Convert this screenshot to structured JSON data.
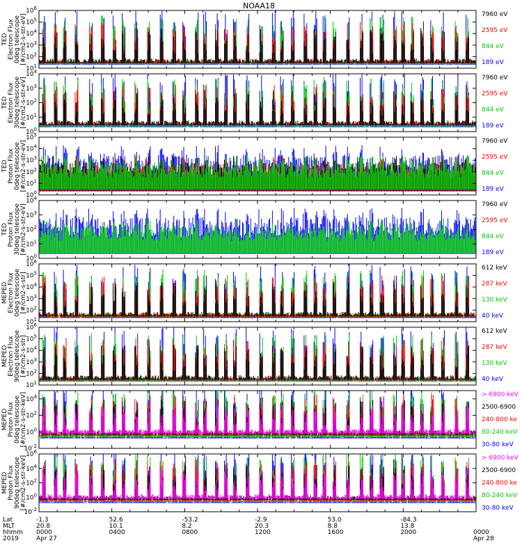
{
  "chart_data": {
    "type": "line",
    "title": "NOAA18",
    "x_range": [
      "2019-04-27 00:00",
      "2019-04-28 00:00"
    ],
    "panels": [
      {
        "ylabel": [
          "TED",
          "Electron Flux",
          "0deg telescope",
          "[#/cm2-s-str-eV]"
        ],
        "y_ticks": [
          "10^1",
          "10^2",
          "10^3",
          "10^4",
          "10^5",
          "10^6"
        ],
        "y_exp": [
          1,
          6
        ],
        "legend": [
          {
            "label": "7960 eV",
            "color": "#000000"
          },
          {
            "label": "2595 eV",
            "color": "#ff0000"
          },
          {
            "label": "844 eV",
            "color": "#00cc00"
          },
          {
            "label": "189 eV",
            "color": "#0000ff"
          }
        ],
        "series_order": [
          "#0000ff",
          "#00cc00",
          "#ff0000",
          "#000000"
        ]
      },
      {
        "ylabel": [
          "TED",
          "Electron Flux",
          "30deg telescope",
          "[#/cm2-s-str-eV]"
        ],
        "y_ticks": [
          "10^0",
          "10^1",
          "10^2",
          "10^3",
          "10^4"
        ],
        "y_exp": [
          0,
          4
        ],
        "legend": [
          {
            "label": "7960 eV",
            "color": "#000000"
          },
          {
            "label": "2595 eV",
            "color": "#ff0000"
          },
          {
            "label": "844 eV",
            "color": "#00cc00"
          },
          {
            "label": "189 eV",
            "color": "#0000ff"
          }
        ],
        "series_order": [
          "#0000ff",
          "#00cc00",
          "#ff0000",
          "#000000"
        ]
      },
      {
        "ylabel": [
          "TED",
          "Proton Flux",
          "0deg telescope",
          "[#/cm2-s-str-eV]"
        ],
        "y_ticks": [
          "10^0",
          "10^1",
          "10^2",
          "10^3",
          "10^4",
          "10^5"
        ],
        "y_exp": [
          0,
          5
        ],
        "legend": [
          {
            "label": "7960 eV",
            "color": "#000000"
          },
          {
            "label": "2595 eV",
            "color": "#ff0000"
          },
          {
            "label": "844 eV",
            "color": "#00cc00"
          },
          {
            "label": "189 eV",
            "color": "#0000ff"
          }
        ],
        "series_order": [
          "#0000ff",
          "#ff0000",
          "#000000",
          "#00cc00"
        ]
      },
      {
        "ylabel": [
          "TED",
          "Proton Flux",
          "30deg telescope",
          "[#/cm2-s-str-eV]"
        ],
        "y_ticks": [
          "10^0",
          "10^1",
          "10^2",
          "10^3",
          "10^4"
        ],
        "y_exp": [
          0,
          4
        ],
        "legend": [
          {
            "label": "7960 eV",
            "color": "#000000"
          },
          {
            "label": "2595 eV",
            "color": "#ff0000"
          },
          {
            "label": "844 eV",
            "color": "#00cc00"
          },
          {
            "label": "189 eV",
            "color": "#0000ff"
          }
        ],
        "series_order": [
          "#0000ff",
          "#00cc00"
        ]
      },
      {
        "ylabel": [
          "MEPED",
          "Electron Flux",
          "0deg telescope",
          "[#/cm2-s-str]"
        ],
        "y_ticks": [
          "10^1",
          "10^2",
          "10^3",
          "10^4",
          "10^5",
          "10^6"
        ],
        "y_exp": [
          1,
          6
        ],
        "legend": [
          {
            "label": "612 keV",
            "color": "#000000"
          },
          {
            "label": "287 keV",
            "color": "#ff0000"
          },
          {
            "label": "130 keV",
            "color": "#00cc00"
          },
          {
            "label": "40 keV",
            "color": "#0000ff"
          }
        ],
        "series_order": [
          "#0000ff",
          "#00cc00",
          "#ff0000",
          "#000000"
        ]
      },
      {
        "ylabel": [
          "MEPED",
          "Electron Flux",
          "90deg telescope",
          "[#/cm2-s-str]"
        ],
        "y_ticks": [
          "10^1",
          "10^2",
          "10^3",
          "10^4",
          "10^5",
          "10^6"
        ],
        "y_exp": [
          1,
          6
        ],
        "legend": [
          {
            "label": "612 keV",
            "color": "#000000"
          },
          {
            "label": "287 keV",
            "color": "#ff0000"
          },
          {
            "label": "130 keV",
            "color": "#00cc00"
          },
          {
            "label": "40 keV",
            "color": "#0000ff"
          }
        ],
        "series_order": [
          "#0000ff",
          "#00cc00",
          "#ff0000",
          "#000000"
        ]
      },
      {
        "ylabel": [
          "MEPED",
          "Proton Flux",
          "0deg telescope",
          "[#/cm2-s-str-keV]"
        ],
        "y_ticks": [
          "10^-2",
          "10^0",
          "10^2",
          "10^4"
        ],
        "y_exp": [
          -2,
          5
        ],
        "legend": [
          {
            "label": "> 6900 keV",
            "color": "#ff00ff"
          },
          {
            "label": "2500-6900",
            "color": "#000000"
          },
          {
            "label": "240-800 ke",
            "color": "#ff0000"
          },
          {
            "label": "80-240 keV",
            "color": "#00cc00"
          },
          {
            "label": "30-80 keV",
            "color": "#0000ff"
          }
        ],
        "series_order": [
          "#0000ff",
          "#00cc00",
          "#ff0000",
          "#000000",
          "#ff00ff"
        ]
      },
      {
        "ylabel": [
          "MEPED",
          "Proton Flux",
          "90deg telescope",
          "[#/cm2-s-str-keV]"
        ],
        "y_ticks": [
          "10^-2",
          "10^0",
          "10^2",
          "10^4",
          "10^6"
        ],
        "y_exp": [
          -2,
          6
        ],
        "legend": [
          {
            "label": "> 6900 keV",
            "color": "#ff00ff"
          },
          {
            "label": "2500-6900",
            "color": "#000000"
          },
          {
            "label": "240-800 ke",
            "color": "#ff0000"
          },
          {
            "label": "80-240 keV",
            "color": "#00cc00"
          },
          {
            "label": "30-80 keV",
            "color": "#0000ff"
          }
        ],
        "series_order": [
          "#0000ff",
          "#00cc00",
          "#ff0000",
          "#000000",
          "#ff00ff"
        ]
      }
    ],
    "x_axis": {
      "row_labels": [
        "Lat",
        "MLT",
        "hhmm",
        "2019"
      ],
      "ticks": [
        {
          "hour": 0,
          "lat": "-1.3",
          "mlt": "20.8",
          "hhmm": "0000",
          "date": "Apr 27"
        },
        {
          "hour": 4,
          "lat": "52.6",
          "mlt": "10.1",
          "hhmm": "0400",
          "date": ""
        },
        {
          "hour": 8,
          "lat": "-53.2",
          "mlt": "8.2",
          "hhmm": "0800",
          "date": ""
        },
        {
          "hour": 12,
          "lat": "-2.9",
          "mlt": "20.3",
          "hhmm": "1200",
          "date": ""
        },
        {
          "hour": 16,
          "lat": "53.0",
          "mlt": "8.8",
          "hhmm": "1600",
          "date": ""
        },
        {
          "hour": 20,
          "lat": "-84.3",
          "mlt": "13.8",
          "hhmm": "2000",
          "date": ""
        },
        {
          "hour": 24,
          "lat": "",
          "mlt": "",
          "hhmm": "0000",
          "date": "Apr 28"
        }
      ]
    }
  }
}
